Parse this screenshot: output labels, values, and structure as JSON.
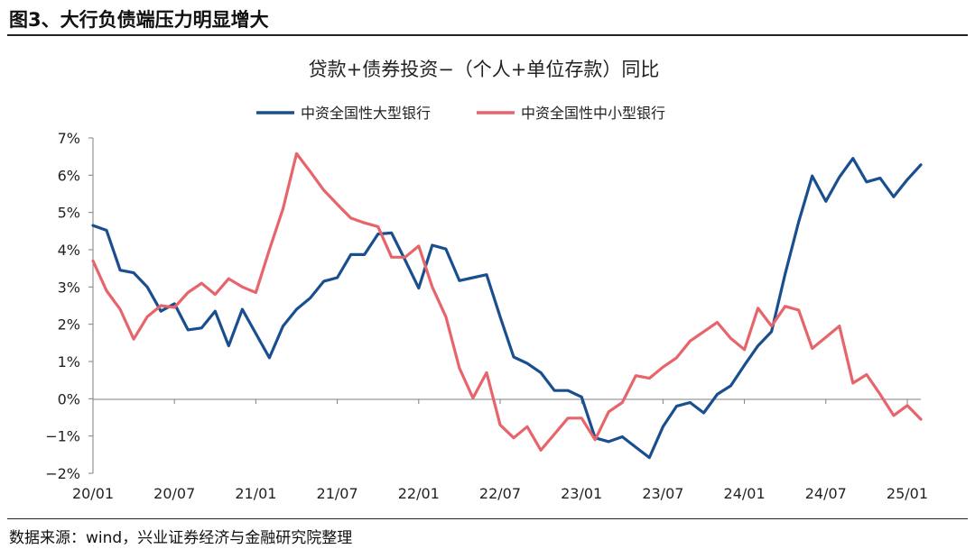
{
  "figure_label": "图3、大行负债端压力明显增大",
  "source": "数据来源：wind，兴业证券经济与金融研究院整理",
  "colors": {
    "large": "#1a4f8f",
    "small": "#e8646b",
    "axis": "#7f7f7f"
  },
  "chart_data": {
    "type": "line",
    "title": "贷款+债券投资−（个人+单位存款）同比",
    "xlabel": "",
    "ylabel": "",
    "x_start": "2020-01",
    "x_ticks": [
      "20/01",
      "20/07",
      "21/01",
      "21/07",
      "22/01",
      "22/07",
      "23/01",
      "23/07",
      "24/01",
      "24/07",
      "25/01"
    ],
    "y_ticks": [
      "7%",
      "6%",
      "5%",
      "4%",
      "3%",
      "2%",
      "1%",
      "0%",
      "−1%",
      "−2%"
    ],
    "ylim": [
      -2,
      7
    ],
    "legend_position": "top-center",
    "series": [
      {
        "name": "中资全国性大型银行",
        "color": "#1a4f8f",
        "values": [
          4.65,
          4.52,
          3.45,
          3.38,
          3.0,
          2.35,
          2.55,
          1.85,
          1.9,
          2.35,
          1.42,
          2.4,
          1.75,
          1.1,
          1.95,
          2.4,
          2.7,
          3.15,
          3.25,
          3.87,
          3.87,
          4.42,
          4.45,
          3.72,
          2.97,
          4.12,
          4.02,
          3.17,
          3.25,
          3.33,
          2.2,
          1.12,
          0.95,
          0.7,
          0.22,
          0.22,
          0.05,
          -1.05,
          -1.15,
          -1.02,
          -1.3,
          -1.58,
          -0.75,
          -0.2,
          -0.1,
          -0.38,
          0.12,
          0.35,
          0.9,
          1.42,
          1.8,
          3.35,
          4.75,
          5.98,
          5.3,
          5.95,
          6.45,
          5.82,
          5.92,
          5.42,
          5.88,
          6.28
        ]
      },
      {
        "name": "中资全国性中小型银行",
        "color": "#e8646b",
        "values": [
          3.7,
          2.9,
          2.4,
          1.6,
          2.2,
          2.5,
          2.45,
          2.85,
          3.1,
          2.8,
          3.22,
          3.0,
          2.85,
          4.0,
          5.1,
          6.58,
          6.1,
          5.6,
          5.22,
          4.85,
          4.72,
          4.62,
          3.8,
          3.8,
          4.1,
          3.0,
          2.2,
          0.82,
          0.02,
          0.7,
          -0.7,
          -1.05,
          -0.75,
          -1.38,
          -0.95,
          -0.52,
          -0.52,
          -1.1,
          -0.35,
          -0.1,
          0.62,
          0.55,
          0.85,
          1.1,
          1.55,
          1.8,
          2.05,
          1.62,
          1.32,
          2.43,
          1.95,
          2.48,
          2.38,
          1.35,
          1.65,
          1.95,
          0.42,
          0.65,
          0.12,
          -0.45,
          -0.18,
          -0.55
        ]
      }
    ]
  }
}
